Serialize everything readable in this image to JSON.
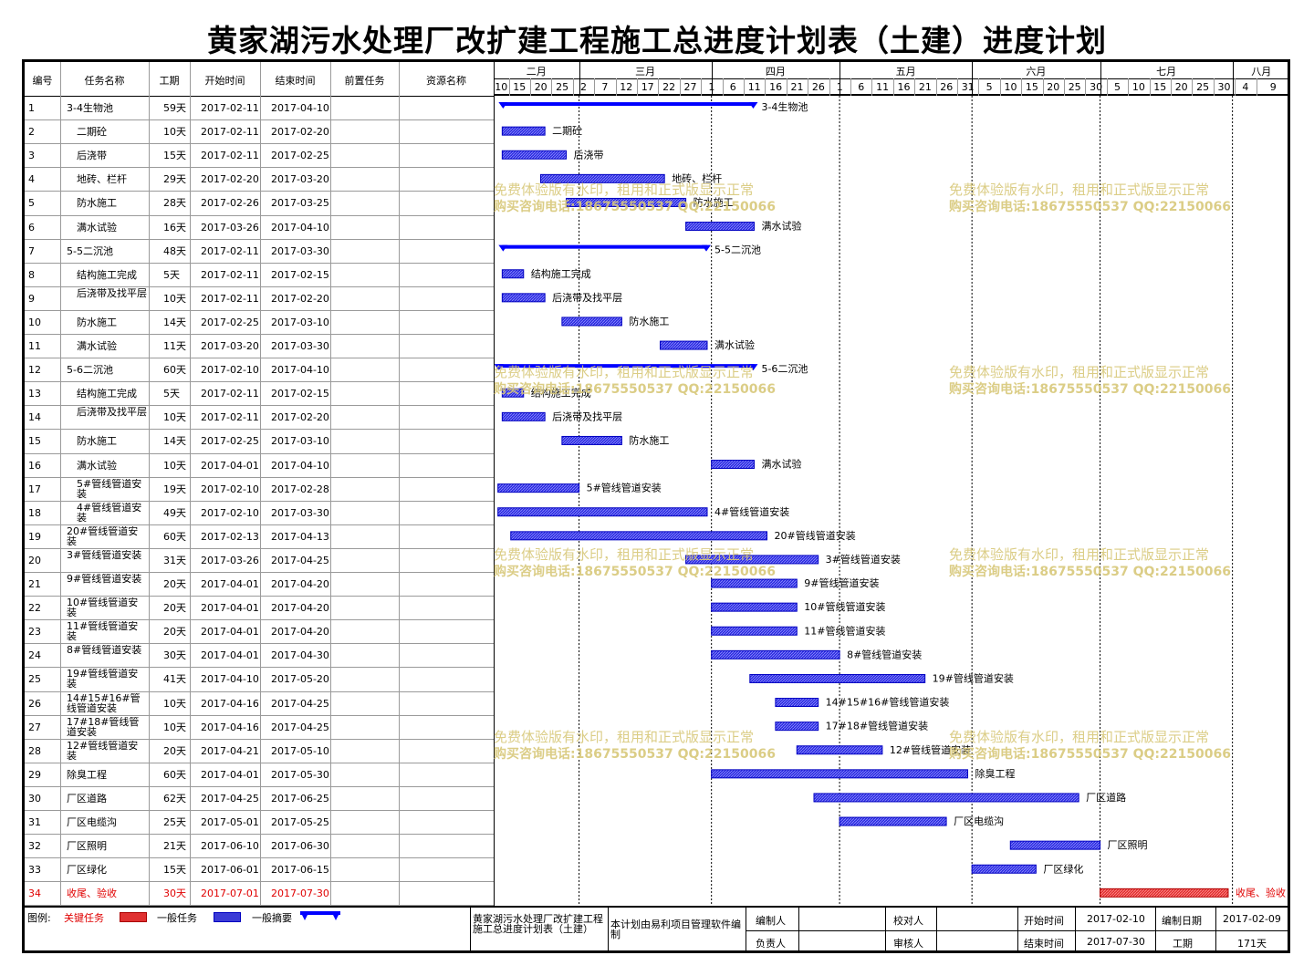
{
  "title": "黄家湖污水处理厂改扩建工程施工总进度计划表（土建）进度计划",
  "columns": [
    "编号",
    "任务名称",
    "工期",
    "开始时间",
    "结束时间",
    "前置任务",
    "资源名称"
  ],
  "months": [
    {
      "label": "二月",
      "date": "2017-02-01"
    },
    {
      "label": "三月",
      "date": "2017-03-01"
    },
    {
      "label": "四月",
      "date": "2017-04-01"
    },
    {
      "label": "五月",
      "date": "2017-05-01"
    },
    {
      "label": "六月",
      "date": "2017-06-01"
    },
    {
      "label": "七月",
      "date": "2017-07-01"
    },
    {
      "label": "八月",
      "date": "2017-08-01"
    }
  ],
  "day_ticks": [
    {
      "label": "10",
      "date": "2017-02-10"
    },
    {
      "label": "15",
      "date": "2017-02-15"
    },
    {
      "label": "20",
      "date": "2017-02-20"
    },
    {
      "label": "25",
      "date": "2017-02-25"
    },
    {
      "label": "2",
      "date": "2017-03-02"
    },
    {
      "label": "7",
      "date": "2017-03-07"
    },
    {
      "label": "12",
      "date": "2017-03-12"
    },
    {
      "label": "17",
      "date": "2017-03-17"
    },
    {
      "label": "22",
      "date": "2017-03-22"
    },
    {
      "label": "27",
      "date": "2017-03-27"
    },
    {
      "label": "1",
      "date": "2017-04-01"
    },
    {
      "label": "6",
      "date": "2017-04-06"
    },
    {
      "label": "11",
      "date": "2017-04-11"
    },
    {
      "label": "16",
      "date": "2017-04-16"
    },
    {
      "label": "21",
      "date": "2017-04-21"
    },
    {
      "label": "26",
      "date": "2017-04-26"
    },
    {
      "label": "1",
      "date": "2017-05-01"
    },
    {
      "label": "6",
      "date": "2017-05-06"
    },
    {
      "label": "11",
      "date": "2017-05-11"
    },
    {
      "label": "16",
      "date": "2017-05-16"
    },
    {
      "label": "21",
      "date": "2017-05-21"
    },
    {
      "label": "26",
      "date": "2017-05-26"
    },
    {
      "label": "31",
      "date": "2017-05-31"
    },
    {
      "label": "5",
      "date": "2017-06-05"
    },
    {
      "label": "10",
      "date": "2017-06-10"
    },
    {
      "label": "15",
      "date": "2017-06-15"
    },
    {
      "label": "20",
      "date": "2017-06-20"
    },
    {
      "label": "25",
      "date": "2017-06-25"
    },
    {
      "label": "30",
      "date": "2017-06-30"
    },
    {
      "label": "5",
      "date": "2017-07-05"
    },
    {
      "label": "10",
      "date": "2017-07-10"
    },
    {
      "label": "15",
      "date": "2017-07-15"
    },
    {
      "label": "20",
      "date": "2017-07-20"
    },
    {
      "label": "25",
      "date": "2017-07-25"
    },
    {
      "label": "30",
      "date": "2017-07-30"
    },
    {
      "label": "4",
      "date": "2017-08-04"
    },
    {
      "label": "9",
      "date": "2017-08-09"
    }
  ],
  "chart_data": {
    "type": "gantt",
    "tasks": [
      {
        "id": "1",
        "name": "3-4生物池",
        "duration": "59天",
        "start": "2017-02-11",
        "end": "2017-04-10",
        "kind": "summary",
        "indent": 0
      },
      {
        "id": "2",
        "name": "二期砼",
        "duration": "10天",
        "start": "2017-02-11",
        "end": "2017-02-20",
        "kind": "task",
        "indent": 1
      },
      {
        "id": "3",
        "name": "后浇带",
        "duration": "15天",
        "start": "2017-02-11",
        "end": "2017-02-25",
        "kind": "task",
        "indent": 1
      },
      {
        "id": "4",
        "name": "地砖、栏杆",
        "duration": "29天",
        "start": "2017-02-20",
        "end": "2017-03-20",
        "kind": "task",
        "indent": 1
      },
      {
        "id": "5",
        "name": "防水施工",
        "duration": "28天",
        "start": "2017-02-26",
        "end": "2017-03-25",
        "kind": "task",
        "indent": 1
      },
      {
        "id": "6",
        "name": "满水试验",
        "duration": "16天",
        "start": "2017-03-26",
        "end": "2017-04-10",
        "kind": "task",
        "indent": 1
      },
      {
        "id": "7",
        "name": "5-5二沉池",
        "duration": "48天",
        "start": "2017-02-11",
        "end": "2017-03-30",
        "kind": "summary",
        "indent": 0
      },
      {
        "id": "8",
        "name": "结构施工完成",
        "duration": "5天",
        "start": "2017-02-11",
        "end": "2017-02-15",
        "kind": "task",
        "indent": 1
      },
      {
        "id": "9",
        "name": "后浇带及找平层",
        "duration": "10天",
        "start": "2017-02-11",
        "end": "2017-02-20",
        "kind": "task",
        "indent": 1
      },
      {
        "id": "10",
        "name": "防水施工",
        "duration": "14天",
        "start": "2017-02-25",
        "end": "2017-03-10",
        "kind": "task",
        "indent": 1
      },
      {
        "id": "11",
        "name": "满水试验",
        "duration": "11天",
        "start": "2017-03-20",
        "end": "2017-03-30",
        "kind": "task",
        "indent": 1
      },
      {
        "id": "12",
        "name": "5-6二沉池",
        "duration": "60天",
        "start": "2017-02-10",
        "end": "2017-04-10",
        "kind": "summary",
        "indent": 0
      },
      {
        "id": "13",
        "name": "结构施工完成",
        "duration": "5天",
        "start": "2017-02-11",
        "end": "2017-02-15",
        "kind": "task",
        "indent": 1
      },
      {
        "id": "14",
        "name": "后浇带及找平层",
        "duration": "10天",
        "start": "2017-02-11",
        "end": "2017-02-20",
        "kind": "task",
        "indent": 1
      },
      {
        "id": "15",
        "name": "防水施工",
        "duration": "14天",
        "start": "2017-02-25",
        "end": "2017-03-10",
        "kind": "task",
        "indent": 1
      },
      {
        "id": "16",
        "name": "满水试验",
        "duration": "10天",
        "start": "2017-04-01",
        "end": "2017-04-10",
        "kind": "task",
        "indent": 1
      },
      {
        "id": "17",
        "name": "5#管线管道安装",
        "duration": "19天",
        "start": "2017-02-10",
        "end": "2017-02-28",
        "kind": "task",
        "indent": 1
      },
      {
        "id": "18",
        "name": "4#管线管道安装",
        "duration": "49天",
        "start": "2017-02-10",
        "end": "2017-03-30",
        "kind": "task",
        "indent": 1
      },
      {
        "id": "19",
        "name": "20#管线管道安装",
        "duration": "60天",
        "start": "2017-02-13",
        "end": "2017-04-13",
        "kind": "task",
        "indent": 0
      },
      {
        "id": "20",
        "name": "3#管线管道安装",
        "duration": "31天",
        "start": "2017-03-26",
        "end": "2017-04-25",
        "kind": "task",
        "indent": 0
      },
      {
        "id": "21",
        "name": "9#管线管道安装",
        "duration": "20天",
        "start": "2017-04-01",
        "end": "2017-04-20",
        "kind": "task",
        "indent": 0
      },
      {
        "id": "22",
        "name": "10#管线管道安装",
        "duration": "20天",
        "start": "2017-04-01",
        "end": "2017-04-20",
        "kind": "task",
        "indent": 0
      },
      {
        "id": "23",
        "name": "11#管线管道安装",
        "duration": "20天",
        "start": "2017-04-01",
        "end": "2017-04-20",
        "kind": "task",
        "indent": 0
      },
      {
        "id": "24",
        "name": "8#管线管道安装",
        "duration": "30天",
        "start": "2017-04-01",
        "end": "2017-04-30",
        "kind": "task",
        "indent": 0
      },
      {
        "id": "25",
        "name": "19#管线管道安装",
        "duration": "41天",
        "start": "2017-04-10",
        "end": "2017-05-20",
        "kind": "task",
        "indent": 0
      },
      {
        "id": "26",
        "name": "14#15#16#管线管道安装",
        "duration": "10天",
        "start": "2017-04-16",
        "end": "2017-04-25",
        "kind": "task",
        "indent": 0
      },
      {
        "id": "27",
        "name": "17#18#管线管道安装",
        "duration": "10天",
        "start": "2017-04-16",
        "end": "2017-04-25",
        "kind": "task",
        "indent": 0
      },
      {
        "id": "28",
        "name": "12#管线管道安装",
        "duration": "20天",
        "start": "2017-04-21",
        "end": "2017-05-10",
        "kind": "task",
        "indent": 0
      },
      {
        "id": "29",
        "name": "除臭工程",
        "duration": "60天",
        "start": "2017-04-01",
        "end": "2017-05-30",
        "kind": "task",
        "indent": 0
      },
      {
        "id": "30",
        "name": "厂区道路",
        "duration": "62天",
        "start": "2017-04-25",
        "end": "2017-06-25",
        "kind": "task",
        "indent": 0
      },
      {
        "id": "31",
        "name": "厂区电缆沟",
        "duration": "25天",
        "start": "2017-05-01",
        "end": "2017-05-25",
        "kind": "task",
        "indent": 0
      },
      {
        "id": "32",
        "name": "厂区照明",
        "duration": "21天",
        "start": "2017-06-10",
        "end": "2017-06-30",
        "kind": "task",
        "indent": 0
      },
      {
        "id": "33",
        "name": "厂区绿化",
        "duration": "15天",
        "start": "2017-06-01",
        "end": "2017-06-15",
        "kind": "task",
        "indent": 0
      },
      {
        "id": "34",
        "name": "收尾、验收",
        "duration": "30天",
        "start": "2017-07-01",
        "end": "2017-07-30",
        "kind": "critical",
        "indent": 0
      }
    ],
    "colors": {
      "task": "#0000c0",
      "task_fill": "#3b3bd6",
      "summary": "#0000ff",
      "critical": "#e03030",
      "grid": "#9a9a9a"
    }
  },
  "watermark": {
    "line1": "免费体验版有水印，租用和正式版显示正常",
    "line2": "购买咨询电话:18675550537 QQ:22150066",
    "color": "#d8c87a"
  },
  "footer": {
    "legend_label": "图例:",
    "legend_critical": "关键任务",
    "legend_task": "一般任务",
    "legend_summary": "一般摘要",
    "project_name": "黄家湖污水处理厂改扩建工程施工总进度计划表（土建）",
    "software": "本计划由易利项目管理软件编制",
    "editor_label": "编制人",
    "editor_value": "",
    "reviewer_label": "校对人",
    "reviewer_value": "",
    "start_label": "开始时间",
    "start_value": "2017-02-10",
    "date_label": "编制日期",
    "date_value": "2017-02-09",
    "owner_label": "负责人",
    "owner_value": "",
    "auditor_label": "审核人",
    "auditor_value": "",
    "end_label": "结束时间",
    "end_value": "2017-07-30",
    "duration_label": "工期",
    "duration_value": "171天"
  }
}
